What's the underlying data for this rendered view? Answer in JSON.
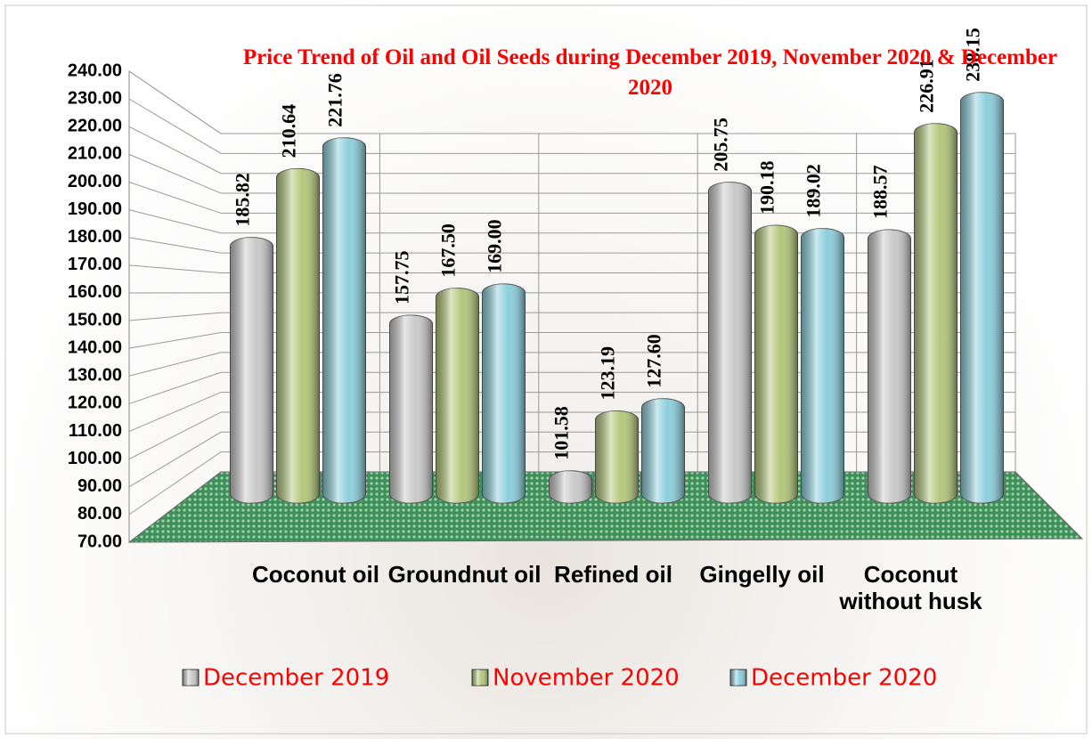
{
  "chart_data": {
    "type": "bar3d",
    "title": "Price Trend of Oil and Oil Seeds during  December 2019, November 2020 & December 2020",
    "categories": [
      "Coconut oil",
      "Groundnut oil",
      "Refined oil",
      "Gingelly oil",
      "Coconut without husk"
    ],
    "series": [
      {
        "name": "December 2019",
        "color": "#c9c9c9",
        "values": [
          185.82,
          157.75,
          101.58,
          205.75,
          188.57
        ],
        "value_labels": [
          "185.82",
          "157.75",
          "101.58",
          "205.75",
          "188.57"
        ]
      },
      {
        "name": "November 2020",
        "color": "#b3c77a",
        "values": [
          210.64,
          167.5,
          123.19,
          190.18,
          226.91
        ],
        "value_labels": [
          "210.64",
          "167.50",
          "123.19",
          "190.18",
          "226.91"
        ]
      },
      {
        "name": "December 2020",
        "color": "#8ccfdc",
        "values": [
          221.76,
          169.0,
          127.6,
          189.02,
          238.15
        ],
        "value_labels": [
          "221.76",
          "169.00",
          "127.60",
          "189.02",
          "238.15"
        ]
      }
    ],
    "ylim": [
      70,
      240
    ],
    "yticks": [
      {
        "value": 70,
        "label": "70.00"
      },
      {
        "value": 80,
        "label": "80.00"
      },
      {
        "value": 90,
        "label": "90.00"
      },
      {
        "value": 100,
        "label": "100.00"
      },
      {
        "value": 110,
        "label": "110.00"
      },
      {
        "value": 120,
        "label": "120.00"
      },
      {
        "value": 130,
        "label": "130.00"
      },
      {
        "value": 140,
        "label": "140.00"
      },
      {
        "value": 150,
        "label": "150.00"
      },
      {
        "value": 160,
        "label": "160.00"
      },
      {
        "value": 170,
        "label": "170.00"
      },
      {
        "value": 180,
        "label": "180.00"
      },
      {
        "value": 190,
        "label": "190.00"
      },
      {
        "value": 200,
        "label": "200.00"
      },
      {
        "value": 210,
        "label": "210.00"
      },
      {
        "value": 220,
        "label": "220.00"
      },
      {
        "value": 230,
        "label": "230.00"
      },
      {
        "value": 240,
        "label": "240.00"
      }
    ],
    "grid": true,
    "legend": "bottom"
  }
}
